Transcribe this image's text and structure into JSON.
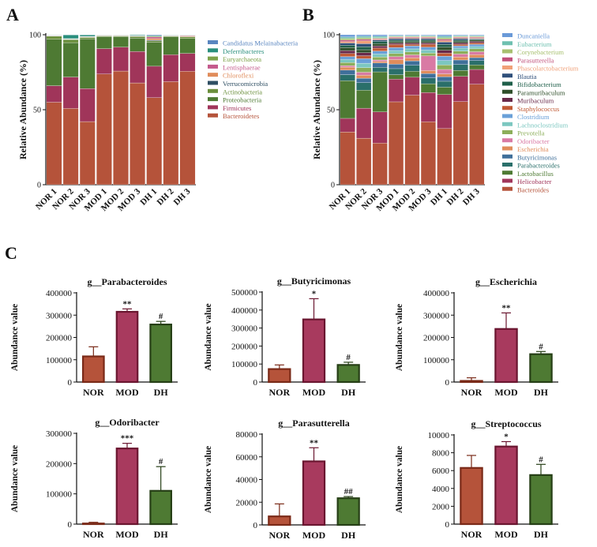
{
  "panel_labels": {
    "a": "A",
    "b": "B",
    "c": "C"
  },
  "chart_data": [
    {
      "id": "A",
      "type": "stacked-bar",
      "ylabel": "Relative  Abundance (%)",
      "ylim": [
        0,
        100
      ],
      "yticks": [
        0,
        50,
        100
      ],
      "categories": [
        "NOR 1",
        "NOR 2",
        "NOR 3",
        "MOD 1",
        "MOD 2",
        "MOD 3",
        "DH 1",
        "DH 2",
        "DH 3"
      ],
      "series": [
        {
          "name": "Bacteroidetes",
          "color": "#b5533a",
          "values": [
            55,
            51,
            42,
            74,
            76,
            68,
            58,
            69,
            76
          ]
        },
        {
          "name": "Firmicutes",
          "color": "#a0355a",
          "values": [
            11,
            21,
            22,
            17,
            16,
            21,
            21,
            18,
            12
          ]
        },
        {
          "name": "Proteobacteria",
          "color": "#4e7a33",
          "values": [
            31,
            23,
            33,
            8,
            7,
            9,
            16,
            12,
            10
          ]
        },
        {
          "name": "Actinobacteria",
          "color": "#6b8f3c",
          "values": [
            2,
            2,
            1,
            0.5,
            0.5,
            1,
            1,
            0.5,
            1
          ]
        },
        {
          "name": "Verrucomicrobia",
          "color": "#2f4f63",
          "values": [
            0.2,
            0.2,
            0.2,
            0.2,
            0.2,
            0.2,
            0.5,
            0.2,
            0.2
          ]
        },
        {
          "name": "Chloroflexi",
          "color": "#e08c5b",
          "values": [
            0.2,
            0.2,
            0.2,
            0.2,
            0.2,
            0.2,
            1,
            0.2,
            0.5
          ]
        },
        {
          "name": "Lentisphaerae",
          "color": "#c45a8c",
          "values": [
            0.2,
            0.2,
            0.2,
            0.1,
            0.1,
            0.1,
            1,
            0.1,
            0.3
          ]
        },
        {
          "name": "Euryarchaeota",
          "color": "#7ea24a",
          "values": [
            0.1,
            0.1,
            0.1,
            0.1,
            0.1,
            0.1,
            0.5,
            0.1,
            0.2
          ]
        },
        {
          "name": "Deferribacteres",
          "color": "#2a8f7d",
          "values": [
            0.2,
            2.5,
            1,
            0.1,
            0.1,
            0.5,
            0.5,
            0.2,
            0.2
          ]
        },
        {
          "name": "Candidatus Melainabacteria",
          "color": "#5a86c0",
          "values": [
            0.1,
            0.1,
            0.1,
            0.1,
            0.1,
            0.1,
            0.5,
            0.1,
            0.1
          ]
        }
      ]
    },
    {
      "id": "B",
      "type": "stacked-bar",
      "ylabel": "Relative  Abundance (%)",
      "ylim": [
        0,
        100
      ],
      "yticks": [
        0,
        50,
        100
      ],
      "categories": [
        "NOR 1",
        "NOR 2",
        "NOR 3",
        "MOD 1",
        "MOD 2",
        "MOD 3",
        "DH 1",
        "DH 2",
        "DH 3"
      ],
      "series": [
        {
          "name": "Bacteroides",
          "color": "#b5533a",
          "values": [
            35,
            31,
            28,
            55,
            60,
            43,
            38,
            56,
            68
          ]
        },
        {
          "name": "Helicobacter",
          "color": "#a0355a",
          "values": [
            9,
            20,
            21,
            15,
            12,
            20,
            23,
            17,
            10
          ]
        },
        {
          "name": "Lactobacillus",
          "color": "#4e7a33",
          "values": [
            25,
            12,
            27,
            3,
            4,
            6,
            5,
            4,
            3
          ]
        },
        {
          "name": "Parabacteroides",
          "color": "#2a6f6a",
          "values": [
            4,
            5,
            3,
            4,
            4,
            4,
            4,
            4,
            3
          ]
        },
        {
          "name": "Butyricimonas",
          "color": "#3f6f9a",
          "values": [
            3,
            3,
            3,
            3,
            3,
            3,
            3,
            3,
            2
          ]
        },
        {
          "name": "Escherichia",
          "color": "#e08c5b",
          "values": [
            2,
            2,
            1,
            3,
            2,
            2,
            2,
            2,
            2
          ]
        },
        {
          "name": "Odoribacter",
          "color": "#d97aa4",
          "values": [
            1,
            2,
            1,
            2,
            2,
            10,
            3,
            2,
            2
          ]
        },
        {
          "name": "Prevotella",
          "color": "#8cae5a",
          "values": [
            2,
            3,
            2,
            2,
            2,
            2,
            3,
            2,
            2
          ]
        },
        {
          "name": "Lachnoclostridium",
          "color": "#7cc7c0",
          "values": [
            2,
            3,
            2,
            2,
            2,
            2,
            3,
            2,
            1.5
          ]
        },
        {
          "name": "Clostridium",
          "color": "#6aa0d8",
          "values": [
            2,
            3,
            2,
            2,
            2,
            2,
            3,
            1.5,
            1.5
          ]
        },
        {
          "name": "Staphylococcus",
          "color": "#c05a35",
          "values": [
            2,
            2,
            2,
            2,
            1,
            2,
            2,
            1,
            1
          ]
        },
        {
          "name": "Muribaculum",
          "color": "#6a2a4a",
          "values": [
            2,
            2,
            1.5,
            1,
            1,
            1,
            2,
            1,
            1
          ]
        },
        {
          "name": "Paramuribaculum",
          "color": "#2f4f2a",
          "values": [
            2,
            2,
            1.5,
            1,
            1,
            1,
            2,
            1,
            1
          ]
        },
        {
          "name": "Bifidobacterium",
          "color": "#1f5f4a",
          "values": [
            1.5,
            2,
            1.5,
            1,
            1,
            1,
            2,
            1,
            0.5
          ]
        },
        {
          "name": "Blautia",
          "color": "#2f4f7a",
          "values": [
            1.5,
            2,
            1,
            1,
            1,
            1,
            1.5,
            1,
            0.5
          ]
        },
        {
          "name": "Phascolarctobacterium",
          "color": "#f0a078",
          "values": [
            1,
            2,
            0.5,
            0.5,
            0.5,
            0.5,
            1,
            0.5,
            0.5
          ]
        },
        {
          "name": "Parasutterella",
          "color": "#c0507a",
          "values": [
            1,
            1,
            0.5,
            0.5,
            0.5,
            0.5,
            1,
            0.5,
            0.5
          ]
        },
        {
          "name": "Corynebacterium",
          "color": "#a8c070",
          "values": [
            1,
            1,
            0.5,
            0.5,
            0.5,
            0.5,
            1,
            0.5,
            0.5
          ]
        },
        {
          "name": "Eubacterium",
          "color": "#6fc0b0",
          "values": [
            1,
            1,
            1,
            0.5,
            0.5,
            0.5,
            1,
            0.5,
            0.5
          ]
        },
        {
          "name": "Duncaniella",
          "color": "#6a9ad8",
          "values": [
            1.5,
            1,
            1,
            0.5,
            0.5,
            0.5,
            1,
            0.5,
            0.5
          ]
        }
      ]
    },
    {
      "id": "C1",
      "type": "bar",
      "title": "g__Parabacteroides",
      "ylabel": "Abundance value",
      "ylim": [
        0,
        400000
      ],
      "yticks": [
        0,
        100000,
        200000,
        300000,
        400000
      ],
      "categories": [
        "NOR",
        "MOD",
        "DH"
      ],
      "values": [
        115000,
        315000,
        258000
      ],
      "errors": [
        43000,
        13000,
        14000
      ],
      "marks": [
        "",
        "**",
        "#"
      ]
    },
    {
      "id": "C2",
      "type": "bar",
      "title": "g__Butyricimonas",
      "ylabel": "Abundance value",
      "ylim": [
        0,
        500000
      ],
      "yticks": [
        0,
        100000,
        200000,
        300000,
        400000,
        500000
      ],
      "categories": [
        "NOR",
        "MOD",
        "DH"
      ],
      "values": [
        72000,
        348000,
        95000
      ],
      "errors": [
        23000,
        115000,
        15000
      ],
      "marks": [
        "",
        "*",
        "#"
      ]
    },
    {
      "id": "C3",
      "type": "bar",
      "title": "g__Escherichia",
      "ylabel": "Abundance value",
      "ylim": [
        0,
        400000
      ],
      "yticks": [
        0,
        100000,
        200000,
        300000,
        400000
      ],
      "categories": [
        "NOR",
        "MOD",
        "DH"
      ],
      "values": [
        5000,
        238000,
        125000
      ],
      "errors": [
        14000,
        72000,
        12000
      ],
      "marks": [
        "",
        "**",
        "#"
      ]
    },
    {
      "id": "C4",
      "type": "bar",
      "title": "g__Odoribacter",
      "ylabel": "Abundance value",
      "ylim": [
        0,
        300000
      ],
      "yticks": [
        0,
        100000,
        200000,
        300000
      ],
      "categories": [
        "NOR",
        "MOD",
        "DH"
      ],
      "values": [
        2000,
        250000,
        110000
      ],
      "errors": [
        4000,
        17000,
        80000
      ],
      "marks": [
        "",
        "***",
        "#"
      ]
    },
    {
      "id": "C5",
      "type": "bar",
      "title": "g__Parasutterella",
      "ylabel": "Abundance value",
      "ylim": [
        0,
        80000
      ],
      "yticks": [
        0,
        20000,
        40000,
        60000,
        80000
      ],
      "categories": [
        "NOR",
        "MOD",
        "DH"
      ],
      "values": [
        7500,
        56000,
        23500
      ],
      "errors": [
        11000,
        12000,
        1500
      ],
      "marks": [
        "",
        "**",
        "##"
      ]
    },
    {
      "id": "C6",
      "type": "bar",
      "title": "g__Streptococcus",
      "ylabel": "Abundance value",
      "ylim": [
        0,
        10000
      ],
      "yticks": [
        0,
        2000,
        4000,
        6000,
        8000,
        10000
      ],
      "categories": [
        "NOR",
        "MOD",
        "DH"
      ],
      "values": [
        6300,
        8700,
        5500
      ],
      "errors": [
        1400,
        550,
        1200
      ],
      "marks": [
        "",
        "*",
        "#"
      ]
    }
  ],
  "bar_colors": {
    "NOR": {
      "fill": "#b5533a",
      "stroke": "#7a2a18"
    },
    "MOD": {
      "fill": "#a83a5e",
      "stroke": "#6a1630"
    },
    "DH": {
      "fill": "#4e7a33",
      "stroke": "#263f16"
    }
  }
}
